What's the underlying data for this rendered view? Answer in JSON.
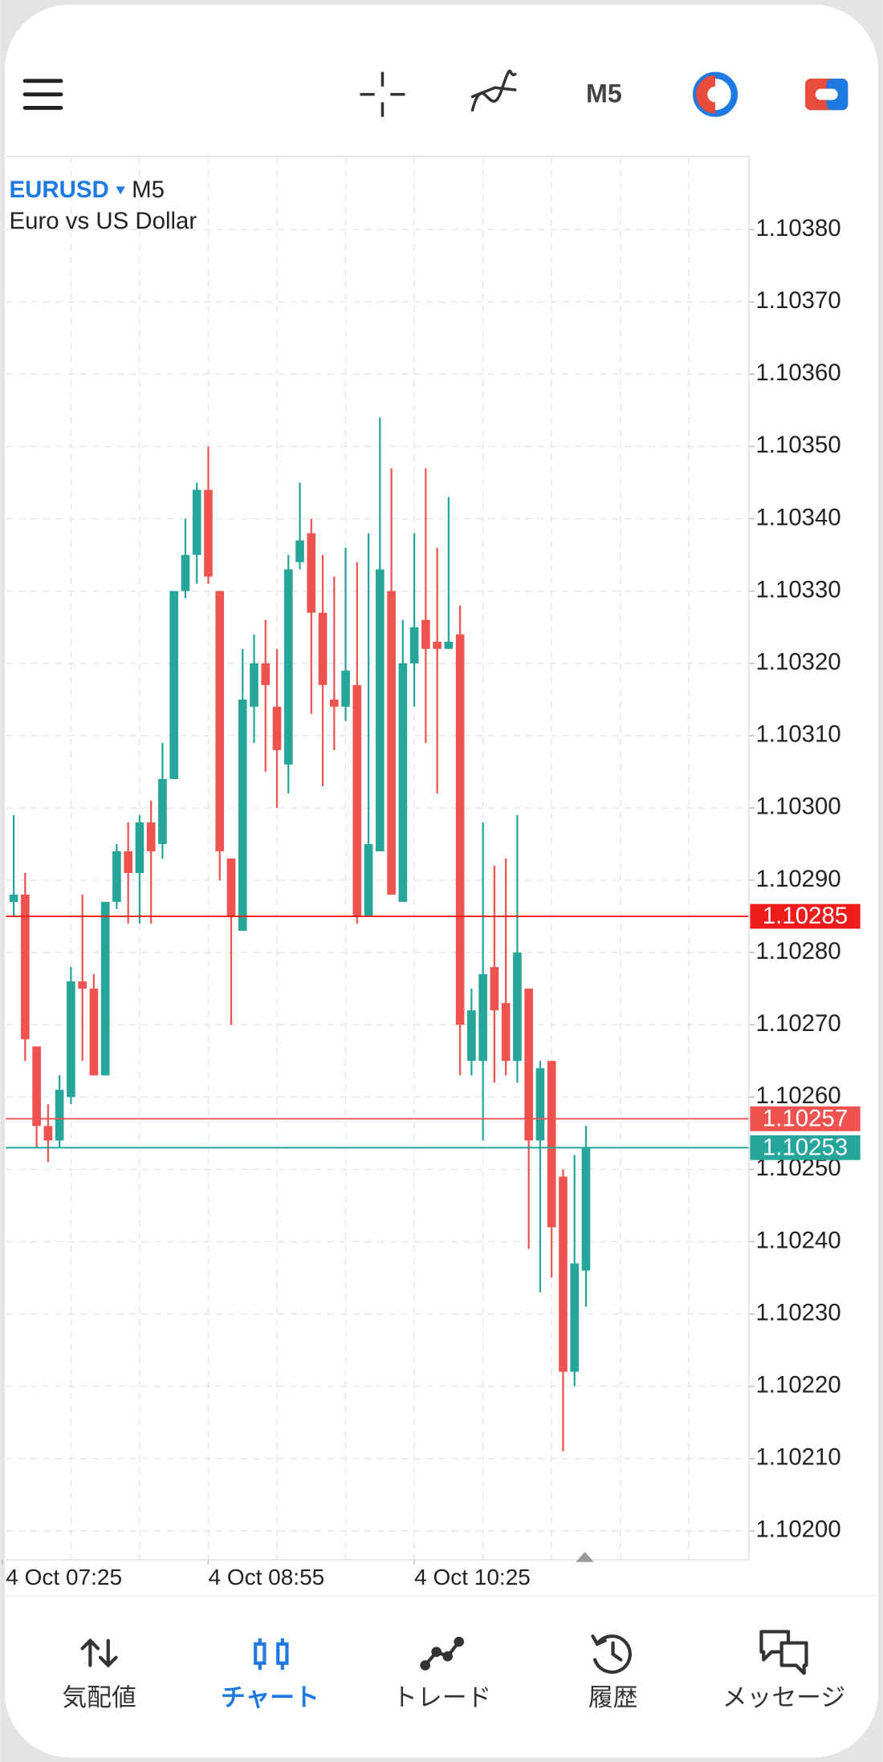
{
  "header": {
    "timeframe": "M5"
  },
  "chart_data": {
    "type": "candlestick",
    "symbol": "EURUSD",
    "timeframe": "M5",
    "description": "Euro vs US Dollar",
    "categories": [
      null,
      null,
      null,
      null,
      null,
      null,
      null,
      null,
      null,
      null,
      null,
      null,
      null,
      null,
      null,
      null,
      null,
      null,
      null,
      null,
      null,
      null,
      null,
      null,
      null,
      null,
      null,
      null,
      null,
      null,
      null,
      null,
      null,
      null,
      null,
      null,
      null,
      null,
      null,
      null,
      null,
      null,
      null,
      null,
      null,
      null,
      null,
      null,
      null,
      null,
      null
    ],
    "open": [
      1.10287,
      1.10288,
      1.10267,
      1.10256,
      1.10254,
      1.1026,
      1.10276,
      1.10275,
      1.10263,
      1.10287,
      1.10294,
      1.10291,
      1.10298,
      1.10295,
      1.10304,
      1.1033,
      1.10335,
      1.10344,
      1.1033,
      1.10293,
      1.10283,
      1.10314,
      1.1032,
      1.10314,
      1.10306,
      1.10334,
      1.10338,
      1.10327,
      1.10315,
      1.10314,
      1.10317,
      1.10285,
      1.10294,
      1.1033,
      1.10287,
      1.1032,
      1.10326,
      1.10323,
      1.10322,
      1.10324,
      1.10265,
      1.10265,
      1.10278,
      1.10273,
      1.10265,
      1.10275,
      1.10254,
      1.10265,
      1.10249,
      1.10222,
      1.10236
    ],
    "high": [
      1.10299,
      1.10291,
      1.10267,
      1.10259,
      1.10263,
      1.10278,
      1.10288,
      1.10277,
      1.10287,
      1.10295,
      1.10298,
      1.10299,
      1.10301,
      1.10309,
      1.1033,
      1.1034,
      1.10345,
      1.1035,
      1.1033,
      1.10293,
      1.10322,
      1.10324,
      1.10326,
      1.10322,
      1.10335,
      1.10345,
      1.1034,
      1.10335,
      1.10332,
      1.10336,
      1.10334,
      1.10338,
      1.10354,
      1.10347,
      1.10326,
      1.10338,
      1.10347,
      1.10336,
      1.10343,
      1.10328,
      1.10275,
      1.10298,
      1.10292,
      1.10293,
      1.10299,
      1.10275,
      1.10265,
      1.10265,
      1.1025,
      1.10252,
      1.10256
    ],
    "low": [
      1.10285,
      1.10265,
      1.10253,
      1.10251,
      1.10253,
      1.10259,
      1.10265,
      1.10263,
      1.10263,
      1.10286,
      1.10284,
      1.10284,
      1.10284,
      1.10293,
      1.10304,
      1.10329,
      1.10331,
      1.10331,
      1.1029,
      1.1027,
      1.10283,
      1.10309,
      1.10305,
      1.103,
      1.10302,
      1.10333,
      1.10313,
      1.10303,
      1.10308,
      1.10312,
      1.10284,
      1.10285,
      1.10294,
      1.10288,
      1.10287,
      1.10314,
      1.10309,
      1.10302,
      1.10322,
      1.10263,
      1.10263,
      1.10254,
      1.10262,
      1.10263,
      1.10262,
      1.10239,
      1.10233,
      1.10235,
      1.10211,
      1.1022,
      1.10231
    ],
    "close": [
      1.10288,
      1.10268,
      1.10256,
      1.10254,
      1.10261,
      1.10276,
      1.10275,
      1.10263,
      1.10287,
      1.10294,
      1.10291,
      1.10298,
      1.10294,
      1.10304,
      1.1033,
      1.10335,
      1.10344,
      1.10332,
      1.10294,
      1.10285,
      1.10315,
      1.1032,
      1.10317,
      1.10308,
      1.10333,
      1.10337,
      1.10327,
      1.10317,
      1.10314,
      1.10319,
      1.10285,
      1.10295,
      1.10333,
      1.10288,
      1.1032,
      1.10325,
      1.10322,
      1.10322,
      1.10323,
      1.1027,
      1.10272,
      1.10277,
      1.10272,
      1.10265,
      1.1028,
      1.10254,
      1.10264,
      1.10242,
      1.10222,
      1.10237,
      1.10253
    ],
    "up_color": "#26a69a",
    "down_color": "#ef5350",
    "ylim": [
      1.10196,
      1.1039
    ],
    "yticks": [
      {
        "value": 1.102,
        "label": "1.10200"
      },
      {
        "value": 1.1021,
        "label": "1.10210"
      },
      {
        "value": 1.1022,
        "label": "1.10220"
      },
      {
        "value": 1.1023,
        "label": "1.10230"
      },
      {
        "value": 1.1024,
        "label": "1.10240"
      },
      {
        "value": 1.1025,
        "label": "1.10250"
      },
      {
        "value": 1.1026,
        "label": "1.10260"
      },
      {
        "value": 1.1027,
        "label": "1.10270"
      },
      {
        "value": 1.1028,
        "label": "1.10280"
      },
      {
        "value": 1.1029,
        "label": "1.10290"
      },
      {
        "value": 1.103,
        "label": "1.10300"
      },
      {
        "value": 1.1031,
        "label": "1.10310"
      },
      {
        "value": 1.1032,
        "label": "1.10320"
      },
      {
        "value": 1.1033,
        "label": "1.10330"
      },
      {
        "value": 1.1034,
        "label": "1.10340"
      },
      {
        "value": 1.1035,
        "label": "1.10350"
      },
      {
        "value": 1.1036,
        "label": "1.10360"
      },
      {
        "value": 1.1037,
        "label": "1.10370"
      },
      {
        "value": 1.1038,
        "label": "1.10380"
      }
    ],
    "xticks": [
      {
        "value": -1,
        "label": "4 Oct 07:25"
      },
      {
        "value": 17,
        "label": "4 Oct 08:55"
      },
      {
        "value": 35,
        "label": "4 Oct 10:25"
      }
    ],
    "grid": true,
    "price_lines": [
      {
        "value": 1.10285,
        "label": "1.10285",
        "color": "#f01c1c"
      },
      {
        "value": 1.10257,
        "label": "1.10257",
        "color": "#ef5350"
      },
      {
        "value": 1.10253,
        "label": "1.10253",
        "color": "#26a69a"
      }
    ]
  },
  "tabs": [
    {
      "label": "気配値"
    },
    {
      "label": "チャート"
    },
    {
      "label": "トレード"
    },
    {
      "label": "履歴"
    },
    {
      "label": "メッセージ"
    }
  ],
  "active_tab": 1
}
